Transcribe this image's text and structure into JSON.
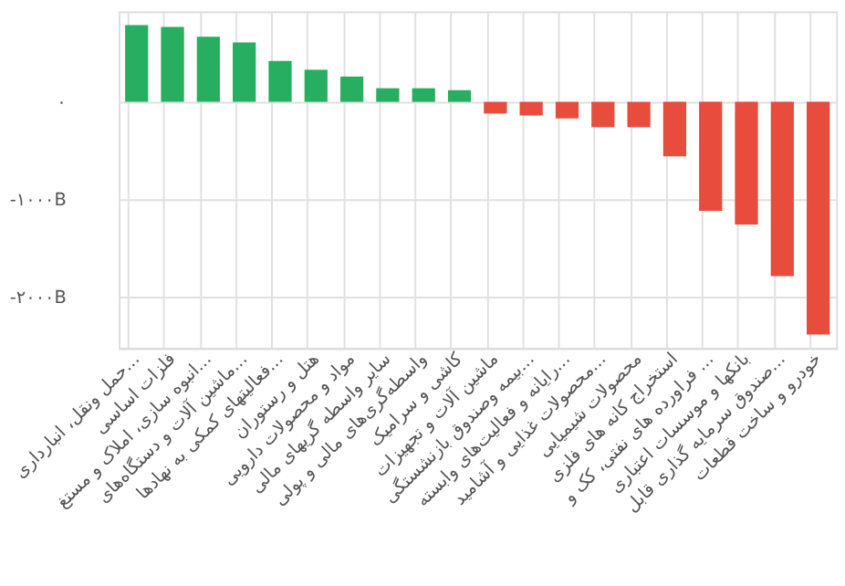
{
  "chart_data": {
    "type": "bar",
    "categories": [
      "حمل ونقل، انبارداری...",
      "فلزات اساسی",
      "انبوه سازی، املاک و مستغ...",
      "ماشین آلات و دستگاه‌های...",
      "فعالیتهای کمکی به نهادها...",
      "هتل و رستوران",
      "مواد و محصولات دارویی",
      "سایر واسطه گریهای مالی",
      "واسطه‌گری‌های مالی و پولی",
      "کاشی و سرامیک",
      "ماشین آلات و تجهیزات",
      "بیمه وصندوق بازنشستگی...",
      "رایانه و فعالیت‌های وابسته...",
      "محصولات غذایی و آشامید...",
      "محصولات شیمیایی",
      "استخراج کانه های فلزی",
      "فراورده های نفتی، کک و ...",
      "بانکها و موسسات اعتباری",
      "صندوق سرمایه گذاری قابل...",
      "خودرو و ساخت قطعات"
    ],
    "values": [
      790,
      770,
      670,
      610,
      420,
      330,
      260,
      140,
      140,
      120,
      -120,
      -140,
      -170,
      -260,
      -260,
      -560,
      -1120,
      -1260,
      -1790,
      -2390
    ],
    "colors": [
      "#27ae60",
      "#27ae60",
      "#27ae60",
      "#27ae60",
      "#27ae60",
      "#27ae60",
      "#27ae60",
      "#27ae60",
      "#27ae60",
      "#27ae60",
      "#e74c3c",
      "#e74c3c",
      "#e74c3c",
      "#e74c3c",
      "#e74c3c",
      "#e74c3c",
      "#e74c3c",
      "#e74c3c",
      "#e74c3c",
      "#e74c3c"
    ],
    "ylim": [
      -2530,
      930
    ],
    "yticks": [
      {
        "value": 0,
        "label": "۰"
      },
      {
        "value": -1000,
        "label": "-۱۰۰۰B"
      },
      {
        "value": -2000,
        "label": "-۲۰۰۰B"
      }
    ],
    "grid": true
  }
}
